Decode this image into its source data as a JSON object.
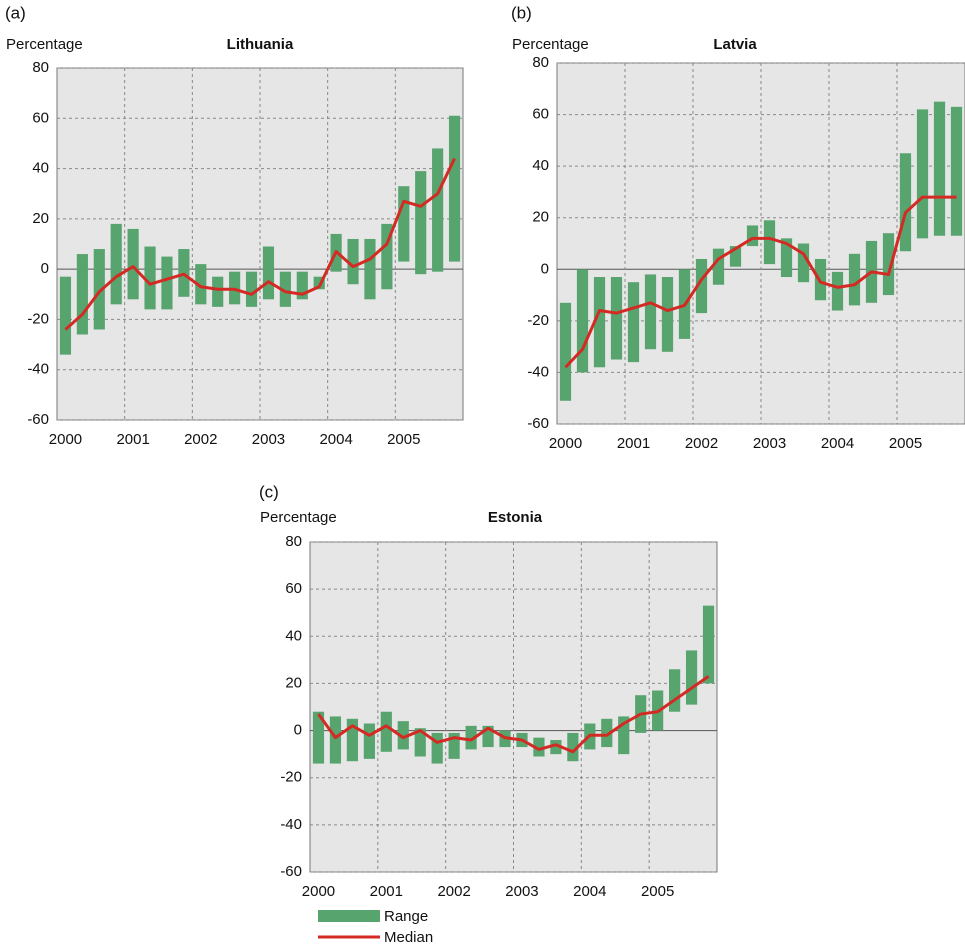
{
  "chart_data": [
    {
      "type": "range-median",
      "panel_label": "(a)",
      "y_label": "Percentage",
      "title": "Lithuania",
      "x": [
        "2000",
        null,
        null,
        null,
        "2001",
        null,
        null,
        null,
        "2002",
        null,
        null,
        null,
        "2003",
        null,
        null,
        null,
        "2004",
        null,
        null,
        null,
        "2005",
        null,
        null,
        null
      ],
      "low": [
        -34,
        -26,
        -24,
        -14,
        -12,
        -16,
        -16,
        -11,
        -14,
        -15,
        -14,
        -15,
        -12,
        -15,
        -12,
        -8,
        -1,
        -6,
        -12,
        -8,
        3,
        -2,
        -1,
        3
      ],
      "high": [
        -3,
        6,
        8,
        18,
        16,
        9,
        5,
        8,
        2,
        -3,
        -1,
        -1,
        9,
        -1,
        -1,
        -3,
        14,
        12,
        12,
        18,
        33,
        39,
        48,
        61
      ],
      "median": [
        -24,
        -18,
        -9,
        -3,
        1,
        -6,
        -4,
        -2,
        -7,
        -8,
        -8,
        -10,
        -5,
        -9,
        -10,
        -7,
        7,
        1,
        4,
        10,
        27,
        25,
        30,
        44
      ],
      "ylim": [
        -60,
        80
      ],
      "yticks": [
        -60,
        -40,
        -20,
        0,
        20,
        40,
        60,
        80
      ],
      "grid": true
    },
    {
      "type": "range-median",
      "panel_label": "(b)",
      "y_label": "Percentage",
      "title": "Latvia",
      "x": [
        "2000",
        null,
        null,
        null,
        "2001",
        null,
        null,
        null,
        "2002",
        null,
        null,
        null,
        "2003",
        null,
        null,
        null,
        "2004",
        null,
        null,
        null,
        "2005",
        null,
        null,
        null
      ],
      "low": [
        -51,
        -40,
        -38,
        -35,
        -36,
        -31,
        -32,
        -27,
        -17,
        -6,
        1,
        9,
        2,
        -3,
        -5,
        -12,
        -16,
        -14,
        -13,
        -10,
        7,
        12,
        13,
        13
      ],
      "high": [
        -13,
        0,
        -3,
        -3,
        -5,
        -2,
        -3,
        0,
        4,
        8,
        9,
        17,
        19,
        12,
        10,
        4,
        -1,
        6,
        11,
        14,
        45,
        62,
        65,
        63
      ],
      "median": [
        -38,
        -31,
        -16,
        -17,
        -15,
        -13,
        -16,
        -14,
        -4,
        4,
        8,
        12,
        12,
        10,
        6,
        -5,
        -7,
        -6,
        -1,
        -2,
        22,
        28,
        28,
        28
      ],
      "ylim": [
        -60,
        80
      ],
      "yticks": [
        -60,
        -40,
        -20,
        0,
        20,
        40,
        60,
        80
      ],
      "grid": true
    },
    {
      "type": "range-median",
      "panel_label": "(c)",
      "y_label": "Percentage",
      "title": "Estonia",
      "x": [
        "2000",
        null,
        null,
        null,
        "2001",
        null,
        null,
        null,
        "2002",
        null,
        null,
        null,
        "2003",
        null,
        null,
        null,
        "2004",
        null,
        null,
        null,
        "2005",
        null,
        null,
        null
      ],
      "low": [
        -14,
        -14,
        -13,
        -12,
        -9,
        -8,
        -11,
        -14,
        -12,
        -8,
        -7,
        -7,
        -7,
        -11,
        -10,
        -13,
        -8,
        -7,
        -10,
        -1,
        0,
        8,
        11,
        20
      ],
      "high": [
        8,
        6,
        5,
        3,
        8,
        4,
        1,
        -1,
        -1,
        2,
        2,
        0,
        -1,
        -3,
        -4,
        -1,
        3,
        5,
        6,
        15,
        17,
        26,
        34,
        53
      ],
      "median": [
        7,
        -3,
        2,
        -2,
        2,
        -3,
        0,
        -5,
        -3,
        -4,
        1,
        -3,
        -4,
        -8,
        -6,
        -9,
        -2,
        -2,
        3,
        7,
        8,
        13,
        18,
        23
      ],
      "ylim": [
        -60,
        80
      ],
      "yticks": [
        -60,
        -40,
        -20,
        0,
        20,
        40,
        60,
        80
      ],
      "grid": true
    }
  ],
  "legend": [
    {
      "name": "Range",
      "color": "#58a46f"
    },
    {
      "name": "Median",
      "color": "#d32a24"
    }
  ]
}
